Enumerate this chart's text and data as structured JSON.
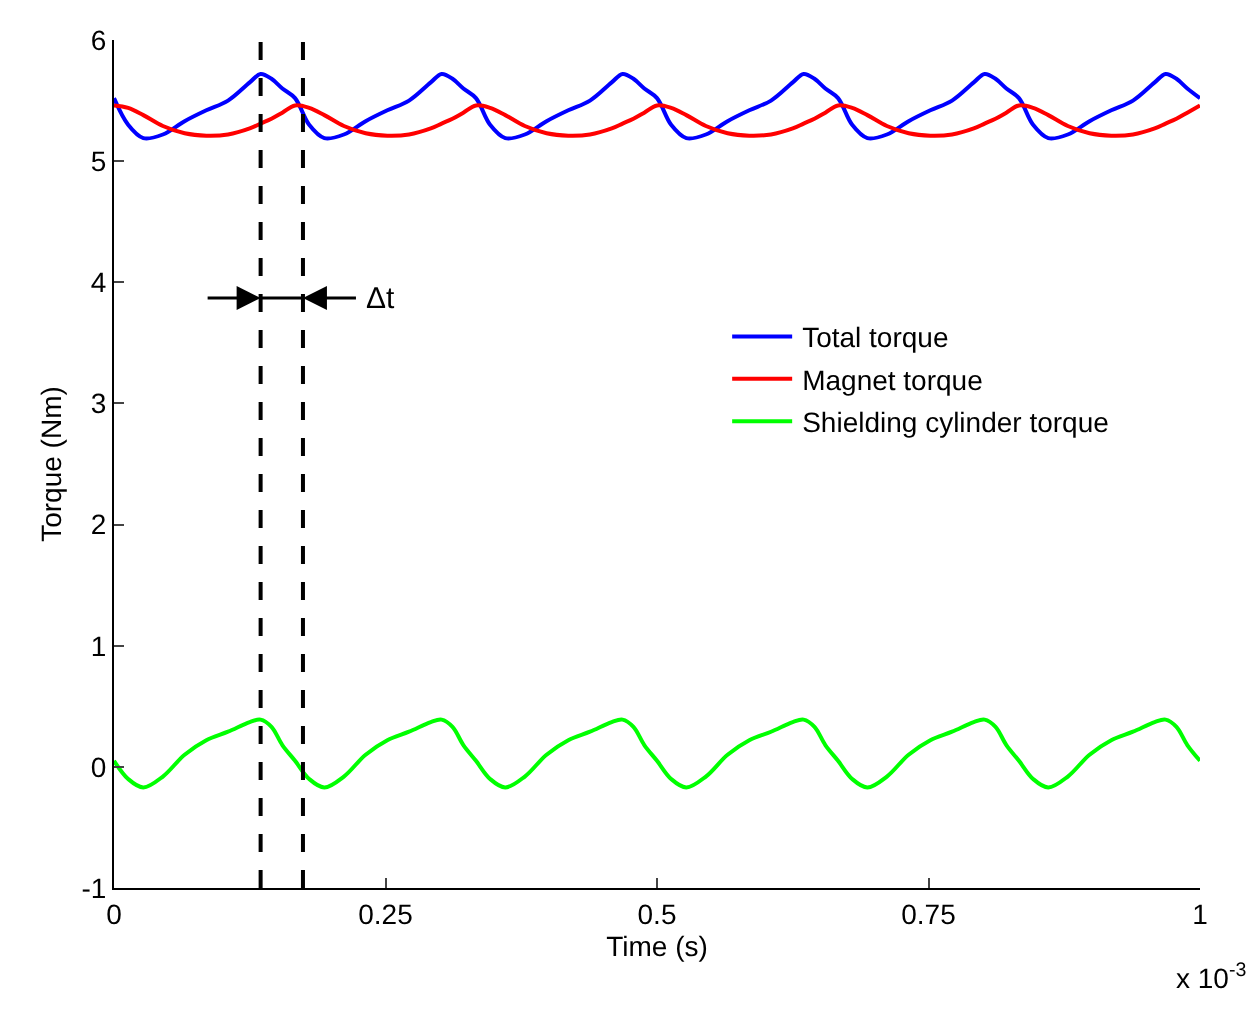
{
  "chart_data": {
    "type": "line",
    "xlabel": "Time (s)",
    "ylabel": "Torque (Nm)",
    "x": [
      0,
      0.013,
      0.027,
      0.045,
      0.065,
      0.085,
      0.105,
      0.125,
      0.135,
      0.145,
      0.155,
      0.1667,
      0.1797,
      0.1937,
      0.2117,
      0.2317,
      0.2517,
      0.2717,
      0.2917,
      0.3017,
      0.3117,
      0.3217,
      0.3333,
      0.3463,
      0.3603,
      0.3783,
      0.3983,
      0.4183,
      0.4383,
      0.4583,
      0.4683,
      0.4783,
      0.4883,
      0.5,
      0.513,
      0.527,
      0.545,
      0.565,
      0.585,
      0.605,
      0.625,
      0.635,
      0.645,
      0.655,
      0.6667,
      0.6797,
      0.6937,
      0.7117,
      0.7317,
      0.7517,
      0.7717,
      0.7917,
      0.8017,
      0.8117,
      0.8217,
      0.8333,
      0.8463,
      0.8603,
      0.8783,
      0.8983,
      0.9183,
      0.9383,
      0.9583,
      0.9683,
      0.9783,
      0.9883,
      1.0
    ],
    "series": [
      {
        "name": "Total torque",
        "color": "#0000ff",
        "values": [
          5.52,
          5.3,
          5.19,
          5.22,
          5.33,
          5.42,
          5.5,
          5.65,
          5.72,
          5.68,
          5.6,
          5.52,
          5.3,
          5.19,
          5.22,
          5.33,
          5.42,
          5.5,
          5.65,
          5.72,
          5.68,
          5.6,
          5.52,
          5.3,
          5.19,
          5.22,
          5.33,
          5.42,
          5.5,
          5.65,
          5.72,
          5.68,
          5.6,
          5.52,
          5.3,
          5.19,
          5.22,
          5.33,
          5.42,
          5.5,
          5.65,
          5.72,
          5.68,
          5.6,
          5.52,
          5.3,
          5.19,
          5.22,
          5.33,
          5.42,
          5.5,
          5.65,
          5.72,
          5.68,
          5.6,
          5.52,
          5.3,
          5.19,
          5.22,
          5.33,
          5.42,
          5.5,
          5.65,
          5.72,
          5.68,
          5.6,
          5.52
        ]
      },
      {
        "name": "Magnet torque",
        "color": "#ff0000",
        "values": [
          5.46,
          5.44,
          5.38,
          5.29,
          5.23,
          5.21,
          5.22,
          5.27,
          5.31,
          5.35,
          5.4,
          5.46,
          5.44,
          5.38,
          5.29,
          5.23,
          5.21,
          5.22,
          5.27,
          5.31,
          5.35,
          5.4,
          5.46,
          5.44,
          5.38,
          5.29,
          5.23,
          5.21,
          5.22,
          5.27,
          5.31,
          5.35,
          5.4,
          5.46,
          5.44,
          5.38,
          5.29,
          5.23,
          5.21,
          5.22,
          5.27,
          5.31,
          5.35,
          5.4,
          5.46,
          5.44,
          5.38,
          5.29,
          5.23,
          5.21,
          5.22,
          5.27,
          5.31,
          5.35,
          5.4,
          5.46,
          5.44,
          5.38,
          5.29,
          5.23,
          5.21,
          5.22,
          5.27,
          5.31,
          5.35,
          5.4,
          5.46
        ]
      },
      {
        "name": "Shielding cylinder torque",
        "color": "#00ff00",
        "values": [
          0.05,
          -0.1,
          -0.17,
          -0.08,
          0.1,
          0.22,
          0.29,
          0.37,
          0.39,
          0.33,
          0.18,
          0.05,
          -0.1,
          -0.17,
          -0.08,
          0.1,
          0.22,
          0.29,
          0.37,
          0.39,
          0.33,
          0.18,
          0.05,
          -0.1,
          -0.17,
          -0.08,
          0.1,
          0.22,
          0.29,
          0.37,
          0.39,
          0.33,
          0.18,
          0.05,
          -0.1,
          -0.17,
          -0.08,
          0.1,
          0.22,
          0.29,
          0.37,
          0.39,
          0.33,
          0.18,
          0.05,
          -0.1,
          -0.17,
          -0.08,
          0.1,
          0.22,
          0.29,
          0.37,
          0.39,
          0.33,
          0.18,
          0.05,
          -0.1,
          -0.17,
          -0.08,
          0.1,
          0.22,
          0.29,
          0.37,
          0.39,
          0.33,
          0.18,
          0.05
        ]
      }
    ],
    "xlim": [
      0,
      1
    ],
    "xticks": [
      0,
      0.25,
      0.5,
      0.75,
      1
    ],
    "ylim": [
      -1,
      6
    ],
    "yticks": [
      -1,
      0,
      1,
      2,
      3,
      4,
      5,
      6
    ],
    "ref_lines": [
      {
        "axis": "x",
        "value": 0.135,
        "label": null,
        "color": "#000000",
        "line_style": "dashed"
      },
      {
        "axis": "x",
        "value": 0.174,
        "label": null,
        "color": "#000000",
        "line_style": "dashed"
      }
    ],
    "annotations": [
      {
        "text": "Δt",
        "x": 0.174,
        "y": 3.87
      },
      "x 10$^{-3}$"
    ],
    "legend": "right",
    "marker": "none",
    "line_style": "solid"
  }
}
